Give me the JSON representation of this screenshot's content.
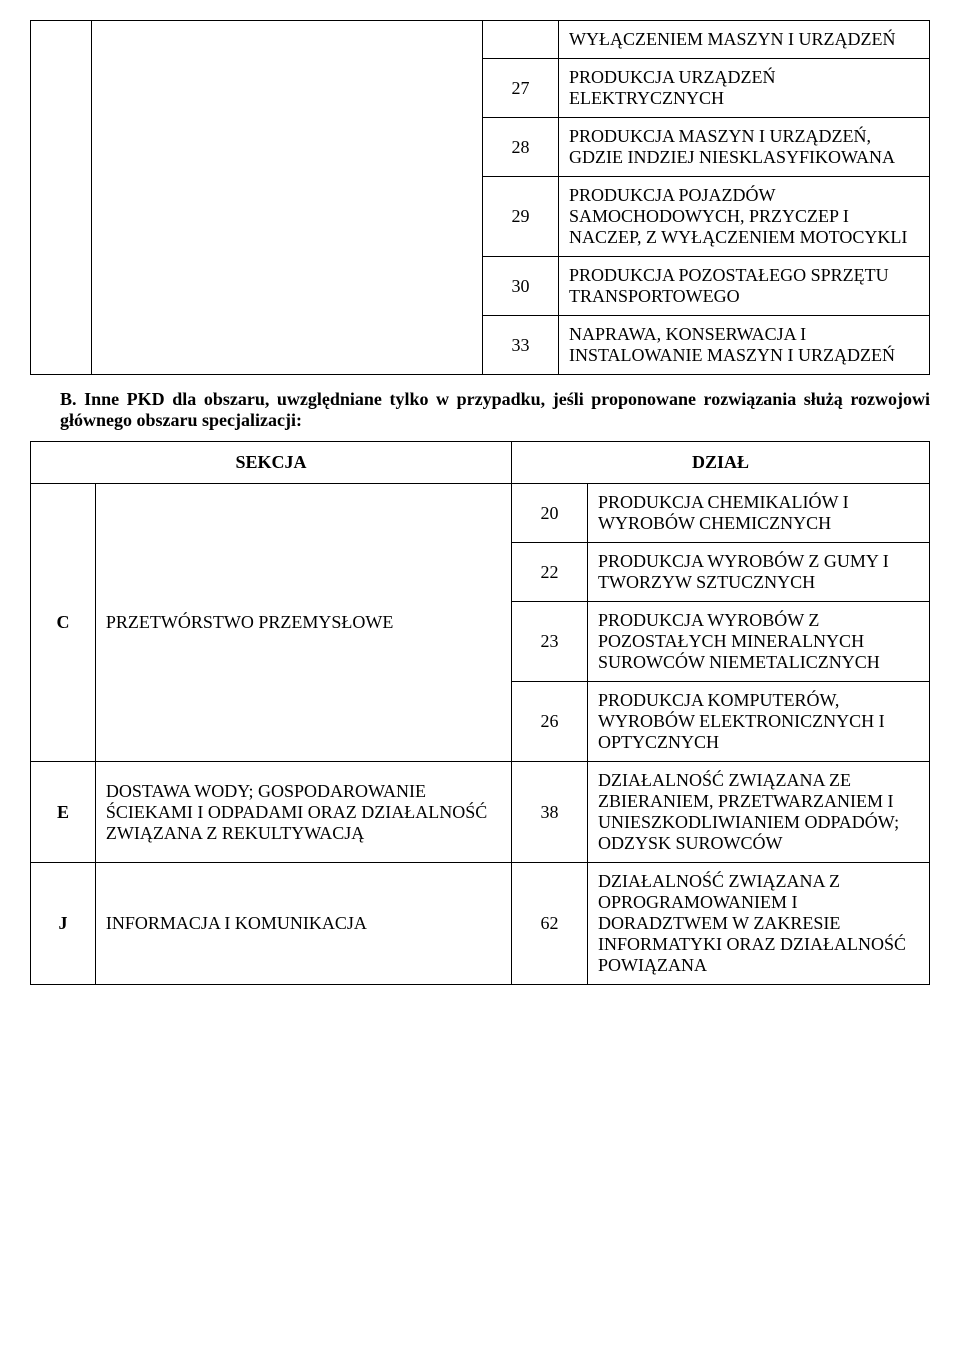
{
  "topTable": {
    "rows": [
      {
        "code": "",
        "desc": "WYŁĄCZENIEM MASZYN I URZĄDZEŃ"
      },
      {
        "code": "27",
        "desc": "PRODUKCJA URZĄDZEŃ ELEKTRYCZNYCH"
      },
      {
        "code": "28",
        "desc": "PRODUKCJA MASZYN I URZĄDZEŃ, GDZIE INDZIEJ NIESKLASYFIKOWANA"
      },
      {
        "code": "29",
        "desc": "PRODUKCJA POJAZDÓW SAMOCHODOWYCH, PRZYCZEP I NACZEP, Z WYŁĄCZENIEM MOTOCYKLI"
      },
      {
        "code": "30",
        "desc": "PRODUKCJA POZOSTAŁEGO SPRZĘTU TRANSPORTOWEGO"
      },
      {
        "code": "33",
        "desc": "NAPRAWA, KONSERWACJA I INSTALOWANIE MASZYN I URZĄDZEŃ"
      }
    ]
  },
  "sectionB": {
    "label": "B.",
    "text": "Inne PKD dla obszaru, uwzględniane tylko w przypadku, jeśli proponowane rozwiązania służą rozwojowi głównego obszaru specjalizacji:"
  },
  "bottomTable": {
    "headers": {
      "sekcja": "SEKCJA",
      "dzial": "DZIAŁ"
    },
    "groups": [
      {
        "letter": "C",
        "section": "PRZETWÓRSTWO PRZEMYSŁOWE",
        "rows": [
          {
            "code": "20",
            "desc": "PRODUKCJA CHEMIKALIÓW I WYROBÓW CHEMICZNYCH"
          },
          {
            "code": "22",
            "desc": "PRODUKCJA WYROBÓW Z GUMY I TWORZYW SZTUCZNYCH"
          },
          {
            "code": "23",
            "desc": "PRODUKCJA WYROBÓW Z POZOSTAŁYCH MINERALNYCH SUROWCÓW NIEMETALICZNYCH"
          },
          {
            "code": "26",
            "desc": "PRODUKCJA KOMPUTERÓW, WYROBÓW ELEKTRONICZNYCH I OPTYCZNYCH"
          }
        ]
      },
      {
        "letter": "E",
        "section": "DOSTAWA WODY; GOSPODAROWANIE ŚCIEKAMI I ODPADAMI ORAZ DZIAŁALNOŚĆ ZWIĄZANA Z REKULTYWACJĄ",
        "rows": [
          {
            "code": "38",
            "desc": "DZIAŁALNOŚĆ ZWIĄZANA ZE ZBIERANIEM, PRZETWARZANIEM I UNIESZKODLIWIANIEM ODPADÓW; ODZYSK SUROWCÓW"
          }
        ]
      },
      {
        "letter": "J",
        "section": "INFORMACJA I KOMUNIKACJA",
        "rows": [
          {
            "code": "62",
            "desc": "DZIAŁALNOŚĆ ZWIĄZANA Z OPROGRAMOWANIEM I DORADZTWEM W ZAKRESIE INFORMATYKI ORAZ DZIAŁALNOŚĆ POWIĄZANA"
          }
        ]
      }
    ]
  }
}
